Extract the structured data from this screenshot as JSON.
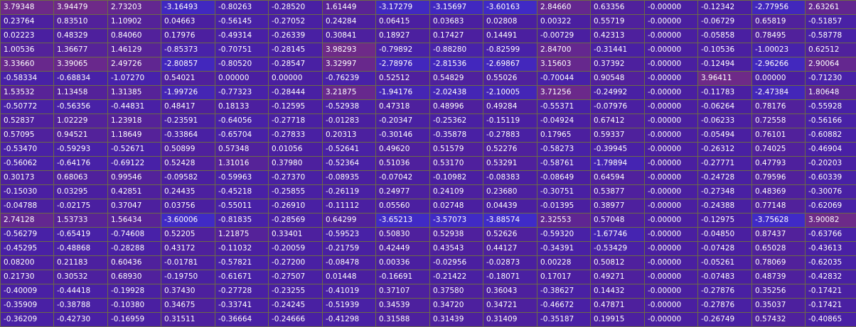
{
  "heatmap": {
    "colors": {
      "low": "#3f2bc9",
      "mid": "#4a1fa0",
      "high": "#6e2a88"
    },
    "rows": [
      [
        "3.79348",
        "3.94479",
        "2.73203",
        "-3.16493",
        "-0.80263",
        "-0.28520",
        "1.61449",
        "-3.17279",
        "-3.15697",
        "-3.60163",
        "2.84660",
        "0.63356",
        "-0.00000",
        "-0.12342",
        "-2.77956",
        "2.63261"
      ],
      [
        "0.23764",
        "0.83510",
        "1.10902",
        "0.04663",
        "-0.56145",
        "-0.27052",
        "0.24284",
        "0.06415",
        "0.03683",
        "0.02808",
        "0.00322",
        "0.55719",
        "-0.00000",
        "-0.06729",
        "0.65819",
        "-0.51857"
      ],
      [
        "0.02223",
        "0.48329",
        "0.84060",
        "0.17976",
        "-0.49314",
        "-0.26339",
        "0.30841",
        "0.18927",
        "0.17427",
        "0.14491",
        "-0.00729",
        "0.42313",
        "-0.00000",
        "-0.05858",
        "0.78495",
        "-0.58778"
      ],
      [
        "1.00536",
        "1.36677",
        "1.46129",
        "-0.85373",
        "-0.70751",
        "-0.28145",
        "3.98293",
        "-0.79892",
        "-0.88280",
        "-0.82599",
        "2.84700",
        "-0.31441",
        "-0.00000",
        "-0.10536",
        "-1.00023",
        "0.62512"
      ],
      [
        "3.33660",
        "3.39065",
        "2.49726",
        "-2.80857",
        "-0.80520",
        "-0.28547",
        "3.32997",
        "-2.78976",
        "-2.81536",
        "-2.69867",
        "3.15603",
        "0.37392",
        "-0.00000",
        "-0.12494",
        "-2.96266",
        "2.90064"
      ],
      [
        "-0.58334",
        "-0.68834",
        "-1.07270",
        "0.54021",
        "0.00000",
        "0.00000",
        "-0.76239",
        "0.52512",
        "0.54829",
        "0.55026",
        "-0.70044",
        "0.90548",
        "-0.00000",
        "3.96411",
        "0.00000",
        "-0.71230"
      ],
      [
        "1.53532",
        "1.13458",
        "1.31385",
        "-1.99726",
        "-0.77323",
        "-0.28444",
        "3.21875",
        "-1.94176",
        "-2.02438",
        "-2.10005",
        "3.71256",
        "-0.24992",
        "-0.00000",
        "-0.11783",
        "-2.47384",
        "1.80648"
      ],
      [
        "-0.50772",
        "-0.56356",
        "-0.44831",
        "0.48417",
        "0.18133",
        "-0.12595",
        "-0.52938",
        "0.47318",
        "0.48996",
        "0.49284",
        "-0.55371",
        "-0.07976",
        "-0.00000",
        "-0.06264",
        "0.78176",
        "-0.55928"
      ],
      [
        "0.52837",
        "1.02229",
        "1.23918",
        "-0.23591",
        "-0.64056",
        "-0.27718",
        "-0.01283",
        "-0.20347",
        "-0.25362",
        "-0.15119",
        "-0.04924",
        "0.67412",
        "-0.00000",
        "-0.06233",
        "0.72558",
        "-0.56166"
      ],
      [
        "0.57095",
        "0.94521",
        "1.18649",
        "-0.33864",
        "-0.65704",
        "-0.27833",
        "0.20313",
        "-0.30146",
        "-0.35878",
        "-0.27883",
        "0.17965",
        "0.59337",
        "-0.00000",
        "-0.05494",
        "0.76101",
        "-0.60882"
      ],
      [
        "-0.53470",
        "-0.59293",
        "-0.52671",
        "0.50899",
        "0.57348",
        "0.01056",
        "-0.52641",
        "0.49620",
        "0.51579",
        "0.52276",
        "-0.58273",
        "-0.39945",
        "-0.00000",
        "-0.26312",
        "0.74025",
        "-0.46904"
      ],
      [
        "-0.56062",
        "-0.64176",
        "-0.69122",
        "0.52428",
        "1.31016",
        "0.37980",
        "-0.52364",
        "0.51036",
        "0.53170",
        "0.53291",
        "-0.58761",
        "-1.79894",
        "-0.00000",
        "-0.27771",
        "0.47793",
        "-0.20203"
      ],
      [
        "0.30173",
        "0.68063",
        "0.99546",
        "-0.09582",
        "-0.59963",
        "-0.27370",
        "-0.08935",
        "-0.07042",
        "-0.10982",
        "-0.08383",
        "-0.08649",
        "0.64594",
        "-0.00000",
        "-0.24728",
        "0.79596",
        "-0.60339"
      ],
      [
        "-0.15030",
        "0.03295",
        "0.42851",
        "0.24435",
        "-0.45218",
        "-0.25855",
        "-0.26119",
        "0.24977",
        "0.24109",
        "0.23680",
        "-0.30751",
        "0.53877",
        "-0.00000",
        "-0.27348",
        "0.48369",
        "-0.30076"
      ],
      [
        "-0.04788",
        "-0.02175",
        "0.37047",
        "0.03756",
        "-0.55011",
        "-0.26910",
        "-0.11112",
        "0.05560",
        "0.02748",
        "0.04439",
        "-0.01395",
        "0.38977",
        "-0.00000",
        "-0.24388",
        "0.77148",
        "-0.62069"
      ],
      [
        "2.74128",
        "1.53733",
        "1.56434",
        "-3.60006",
        "-0.81835",
        "-0.28569",
        "0.64299",
        "-3.65213",
        "-3.57073",
        "-3.88574",
        "2.32553",
        "0.57048",
        "-0.00000",
        "-0.12975",
        "-3.75628",
        "3.90082"
      ],
      [
        "-0.56279",
        "-0.65419",
        "-0.74608",
        "0.52205",
        "1.21875",
        "0.33401",
        "-0.59523",
        "0.50830",
        "0.52938",
        "0.52626",
        "-0.59320",
        "-1.67746",
        "-0.00000",
        "-0.04850",
        "0.87437",
        "-0.63766"
      ],
      [
        "-0.45295",
        "-0.48868",
        "-0.28288",
        "0.43172",
        "-0.11032",
        "-0.20059",
        "-0.21759",
        "0.42449",
        "0.43543",
        "0.44127",
        "-0.34391",
        "-0.53429",
        "-0.00000",
        "-0.07428",
        "0.65028",
        "-0.43613"
      ],
      [
        "0.08200",
        "0.21183",
        "0.60436",
        "-0.01781",
        "-0.57821",
        "-0.27200",
        "-0.08478",
        "0.00336",
        "-0.02956",
        "-0.02873",
        "0.00228",
        "0.50812",
        "-0.00000",
        "-0.05261",
        "0.78069",
        "-0.62035"
      ],
      [
        "0.21730",
        "0.30532",
        "0.68930",
        "-0.19750",
        "-0.61671",
        "-0.27507",
        "0.01448",
        "-0.16691",
        "-0.21422",
        "-0.18071",
        "0.17017",
        "0.49271",
        "-0.00000",
        "-0.07483",
        "0.48739",
        "-0.42832"
      ],
      [
        "-0.40009",
        "-0.44418",
        "-0.19928",
        "0.37430",
        "-0.27728",
        "-0.23255",
        "-0.41019",
        "0.37107",
        "0.37580",
        "0.36043",
        "-0.38627",
        "0.14432",
        "-0.00000",
        "-0.27876",
        "0.35256",
        "-0.17421"
      ],
      [
        "-0.35909",
        "-0.38788",
        "-0.10380",
        "0.34675",
        "-0.33741",
        "-0.24245",
        "-0.51939",
        "0.34539",
        "0.34720",
        "0.34721",
        "-0.46672",
        "0.47871",
        "-0.00000",
        "-0.27876",
        "0.35037",
        "-0.17421"
      ],
      [
        "-0.36209",
        "-0.42730",
        "-0.16959",
        "0.31511",
        "-0.36664",
        "-0.24666",
        "-0.41298",
        "0.31588",
        "0.31439",
        "0.31409",
        "-0.35187",
        "0.19915",
        "-0.00000",
        "-0.26749",
        "0.57432",
        "-0.40865"
      ]
    ]
  }
}
